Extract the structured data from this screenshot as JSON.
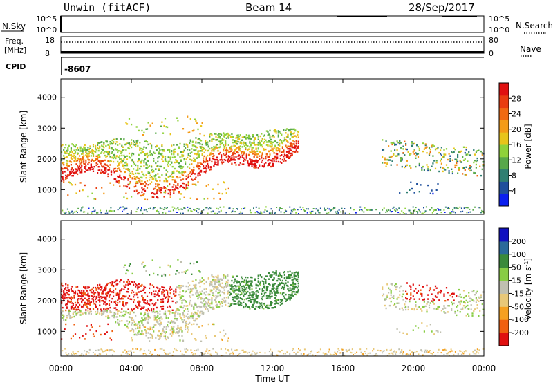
{
  "header": {
    "station": "Unwin (fitACF)",
    "beam": "Beam 14",
    "date": "28/Sep/2017"
  },
  "strips": {
    "nsky_label": "N.Sky",
    "nsky_ticks": [
      "10^5",
      "10^0"
    ],
    "nsearch_label": "N.Search",
    "nsearch_ticks": [
      "10^5",
      "10^0"
    ],
    "freq_label_1": "Freq.",
    "freq_label_2": "[MHz]",
    "freq_ticks": [
      "18",
      "8"
    ],
    "nave_label": "Nave",
    "nave_ticks": [
      "80",
      "0"
    ],
    "cpid_label": "CPID",
    "cpid_value": "-8607"
  },
  "x_axis": {
    "label": "Time UT",
    "ticks": [
      "00:00",
      "04:00",
      "08:00",
      "12:00",
      "16:00",
      "20:00",
      "00:00"
    ]
  },
  "colors": {
    "power": [
      "#0a1ff0",
      "#1f4f9c",
      "#2f7f72",
      "#58a84a",
      "#8fd23a",
      "#e8c41a",
      "#f49b17",
      "#f06a12",
      "#e93c10",
      "#e01010"
    ],
    "velocity": [
      "#e01010",
      "#f06010",
      "#f5a020",
      "#e8c878",
      "#c0c0b0",
      "#88cc44",
      "#3a8a3a",
      "#2a6a9a",
      "#1010c0"
    ]
  },
  "chart_data": [
    {
      "type": "heatmap",
      "panel": "power",
      "title": "",
      "xlabel": "Time UT",
      "ylabel": "Slant Range [km]",
      "x_range": [
        "00:00",
        "24:00"
      ],
      "ylim": [
        200,
        4600
      ],
      "y_ticks": [
        1000,
        2000,
        3000,
        4000
      ],
      "colorbar": {
        "label": "Power [dB]",
        "range": [
          0,
          32
        ],
        "ticks": [
          4,
          8,
          12,
          16,
          20,
          24,
          28
        ]
      },
      "features": [
        {
          "name": "main echo band",
          "t_start": 0,
          "t_end": 13.5,
          "range_start": 1000,
          "range_end": 2800,
          "peak_power_db": 28
        },
        {
          "name": "evening echoes",
          "t_start": 18.0,
          "t_end": 24.0,
          "range_start": 700,
          "range_end": 2700,
          "peak_power_db": 22
        },
        {
          "name": "near-range scatter",
          "t_start": 0,
          "t_end": 24.0,
          "range_start": 200,
          "range_end": 450,
          "peak_power_db": 10
        }
      ]
    },
    {
      "type": "heatmap",
      "panel": "velocity",
      "title": "",
      "xlabel": "Time UT",
      "ylabel": "Slant Range [km]",
      "x_range": [
        "00:00",
        "24:00"
      ],
      "ylim": [
        200,
        4600
      ],
      "y_ticks": [
        1000,
        2000,
        3000,
        4000
      ],
      "colorbar": {
        "label": "Velocity [m s-1]",
        "ticks": [
          -200,
          -100,
          -50,
          -15,
          15,
          50,
          100,
          200
        ]
      },
      "features": [
        {
          "name": "westward flow band",
          "t_start": 0,
          "t_end": 6.5,
          "range_start": 1400,
          "range_end": 2500,
          "velocity_ms": -200
        },
        {
          "name": "ground scatter",
          "t_start": 3.0,
          "t_end": 12.0,
          "range_start": 1200,
          "range_end": 2500,
          "velocity_ms": 0
        },
        {
          "name": "eastward flow band",
          "t_start": 9.5,
          "t_end": 13.0,
          "range_start": 2300,
          "range_end": 2800,
          "velocity_ms": 50
        },
        {
          "name": "evening westward flow",
          "t_start": 19.5,
          "t_end": 22.5,
          "range_start": 2000,
          "range_end": 2500,
          "velocity_ms": -200
        }
      ]
    }
  ]
}
